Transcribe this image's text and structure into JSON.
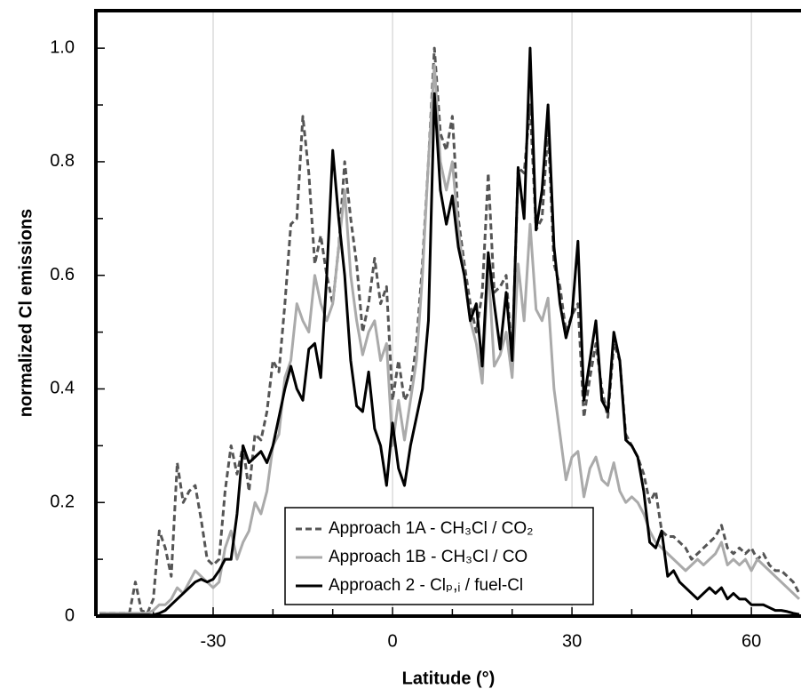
{
  "chart_data": {
    "type": "line",
    "xlabel": "Latitude   (°)",
    "ylabel": "normalized Cl emissions",
    "xlim": [
      -49.6,
      68
    ],
    "ylim": [
      0,
      1.066
    ],
    "xticks": [
      -30,
      0,
      30,
      60
    ],
    "xminor": [
      -40,
      -20,
      -10,
      10,
      20,
      40,
      50
    ],
    "yticks": [
      0,
      0.2,
      0.4,
      0.6,
      0.8,
      {
        "value": 1,
        "label": "1.0"
      }
    ],
    "yminor": [
      0.1,
      0.3,
      0.5,
      0.7,
      0.9
    ],
    "grid": true,
    "x": [
      -49,
      -48,
      -47,
      -46,
      -45,
      -44,
      -43,
      -42,
      -41,
      -40,
      -39,
      -38,
      -37,
      -36,
      -35,
      -34,
      -33,
      -32,
      -31,
      -30,
      -29,
      -28,
      -27,
      -26,
      -25,
      -24,
      -23,
      -22,
      -21,
      -20,
      -19,
      -18,
      -17,
      -16,
      -15,
      -14,
      -13,
      -12,
      -11,
      -10,
      -9,
      -8,
      -7,
      -6,
      -5,
      -4,
      -3,
      -2,
      -1,
      0,
      1,
      2,
      3,
      4,
      5,
      6,
      7,
      8,
      9,
      10,
      11,
      12,
      13,
      14,
      15,
      16,
      17,
      18,
      19,
      20,
      21,
      22,
      23,
      24,
      25,
      26,
      27,
      28,
      29,
      30,
      31,
      32,
      33,
      34,
      35,
      36,
      37,
      38,
      39,
      40,
      41,
      42,
      43,
      44,
      45,
      46,
      47,
      48,
      49,
      50,
      51,
      52,
      53,
      54,
      55,
      56,
      57,
      58,
      59,
      60,
      61,
      62,
      63,
      64,
      65,
      66,
      67,
      68
    ],
    "series": [
      {
        "name": "Approach 1A - CH₃Cl / CO₂",
        "color": "#555555",
        "dash": "7,4",
        "values": [
          0.005,
          0.005,
          0.005,
          0.005,
          0.005,
          0.005,
          0.06,
          0.01,
          0.005,
          0.03,
          0.15,
          0.12,
          0.07,
          0.27,
          0.2,
          0.22,
          0.23,
          0.17,
          0.1,
          0.09,
          0.1,
          0.22,
          0.3,
          0.25,
          0.3,
          0.22,
          0.32,
          0.31,
          0.36,
          0.45,
          0.43,
          0.55,
          0.69,
          0.7,
          0.88,
          0.78,
          0.62,
          0.67,
          0.6,
          0.55,
          0.65,
          0.8,
          0.7,
          0.62,
          0.5,
          0.55,
          0.63,
          0.55,
          0.58,
          0.38,
          0.45,
          0.38,
          0.4,
          0.48,
          0.62,
          0.8,
          1.0,
          0.85,
          0.82,
          0.88,
          0.7,
          0.62,
          0.55,
          0.5,
          0.57,
          0.78,
          0.57,
          0.58,
          0.6,
          0.45,
          0.79,
          0.78,
          0.9,
          0.68,
          0.7,
          0.86,
          0.62,
          0.58,
          0.5,
          0.53,
          0.55,
          0.35,
          0.42,
          0.48,
          0.4,
          0.35,
          0.48,
          0.45,
          0.32,
          0.3,
          0.28,
          0.25,
          0.2,
          0.22,
          0.15,
          0.14,
          0.14,
          0.13,
          0.12,
          0.1,
          0.11,
          0.12,
          0.13,
          0.14,
          0.16,
          0.12,
          0.11,
          0.12,
          0.11,
          0.12,
          0.1,
          0.11,
          0.09,
          0.08,
          0.08,
          0.07,
          0.06,
          0.04
        ]
      },
      {
        "name": "Approach 1B - CH₃Cl / CO",
        "color": "#aaaaaa",
        "values": [
          0.005,
          0.005,
          0.005,
          0.005,
          0.005,
          0.005,
          0.005,
          0.005,
          0.005,
          0.01,
          0.02,
          0.02,
          0.03,
          0.05,
          0.04,
          0.06,
          0.08,
          0.07,
          0.06,
          0.05,
          0.06,
          0.12,
          0.15,
          0.1,
          0.13,
          0.15,
          0.2,
          0.18,
          0.22,
          0.3,
          0.32,
          0.42,
          0.45,
          0.55,
          0.52,
          0.5,
          0.6,
          0.55,
          0.52,
          0.55,
          0.65,
          0.75,
          0.6,
          0.52,
          0.46,
          0.5,
          0.52,
          0.45,
          0.48,
          0.3,
          0.38,
          0.31,
          0.38,
          0.45,
          0.6,
          0.8,
          0.97,
          0.8,
          0.75,
          0.8,
          0.68,
          0.6,
          0.52,
          0.48,
          0.41,
          0.62,
          0.44,
          0.46,
          0.5,
          0.42,
          0.62,
          0.52,
          0.69,
          0.54,
          0.52,
          0.56,
          0.4,
          0.32,
          0.24,
          0.28,
          0.29,
          0.21,
          0.26,
          0.28,
          0.24,
          0.23,
          0.27,
          0.22,
          0.2,
          0.21,
          0.2,
          0.18,
          0.15,
          0.13,
          0.12,
          0.11,
          0.1,
          0.09,
          0.08,
          0.09,
          0.1,
          0.09,
          0.1,
          0.11,
          0.13,
          0.09,
          0.1,
          0.09,
          0.1,
          0.08,
          0.1,
          0.09,
          0.08,
          0.07,
          0.06,
          0.05,
          0.04,
          0.03
        ]
      },
      {
        "name": "Approach 2 - Clₚ,ᵢ / fuel-Cl",
        "color": "#000000",
        "values": [
          0.002,
          0.002,
          0.002,
          0.002,
          0.002,
          0.002,
          0.002,
          0.002,
          0.002,
          0.002,
          0.005,
          0.01,
          0.02,
          0.03,
          0.04,
          0.05,
          0.06,
          0.065,
          0.06,
          0.065,
          0.08,
          0.1,
          0.1,
          0.18,
          0.3,
          0.27,
          0.28,
          0.29,
          0.27,
          0.3,
          0.35,
          0.4,
          0.44,
          0.4,
          0.38,
          0.47,
          0.48,
          0.42,
          0.6,
          0.82,
          0.7,
          0.6,
          0.45,
          0.37,
          0.36,
          0.43,
          0.33,
          0.3,
          0.23,
          0.34,
          0.26,
          0.23,
          0.3,
          0.35,
          0.4,
          0.52,
          0.92,
          0.75,
          0.69,
          0.74,
          0.65,
          0.6,
          0.52,
          0.55,
          0.44,
          0.64,
          0.55,
          0.47,
          0.57,
          0.45,
          0.79,
          0.7,
          1.0,
          0.68,
          0.75,
          0.9,
          0.65,
          0.55,
          0.49,
          0.53,
          0.66,
          0.38,
          0.45,
          0.52,
          0.38,
          0.36,
          0.5,
          0.45,
          0.31,
          0.3,
          0.28,
          0.22,
          0.13,
          0.12,
          0.15,
          0.07,
          0.08,
          0.06,
          0.05,
          0.04,
          0.03,
          0.04,
          0.05,
          0.04,
          0.05,
          0.03,
          0.04,
          0.03,
          0.03,
          0.02,
          0.02,
          0.02,
          0.015,
          0.01,
          0.01,
          0.008,
          0.005,
          0.003
        ]
      }
    ]
  }
}
